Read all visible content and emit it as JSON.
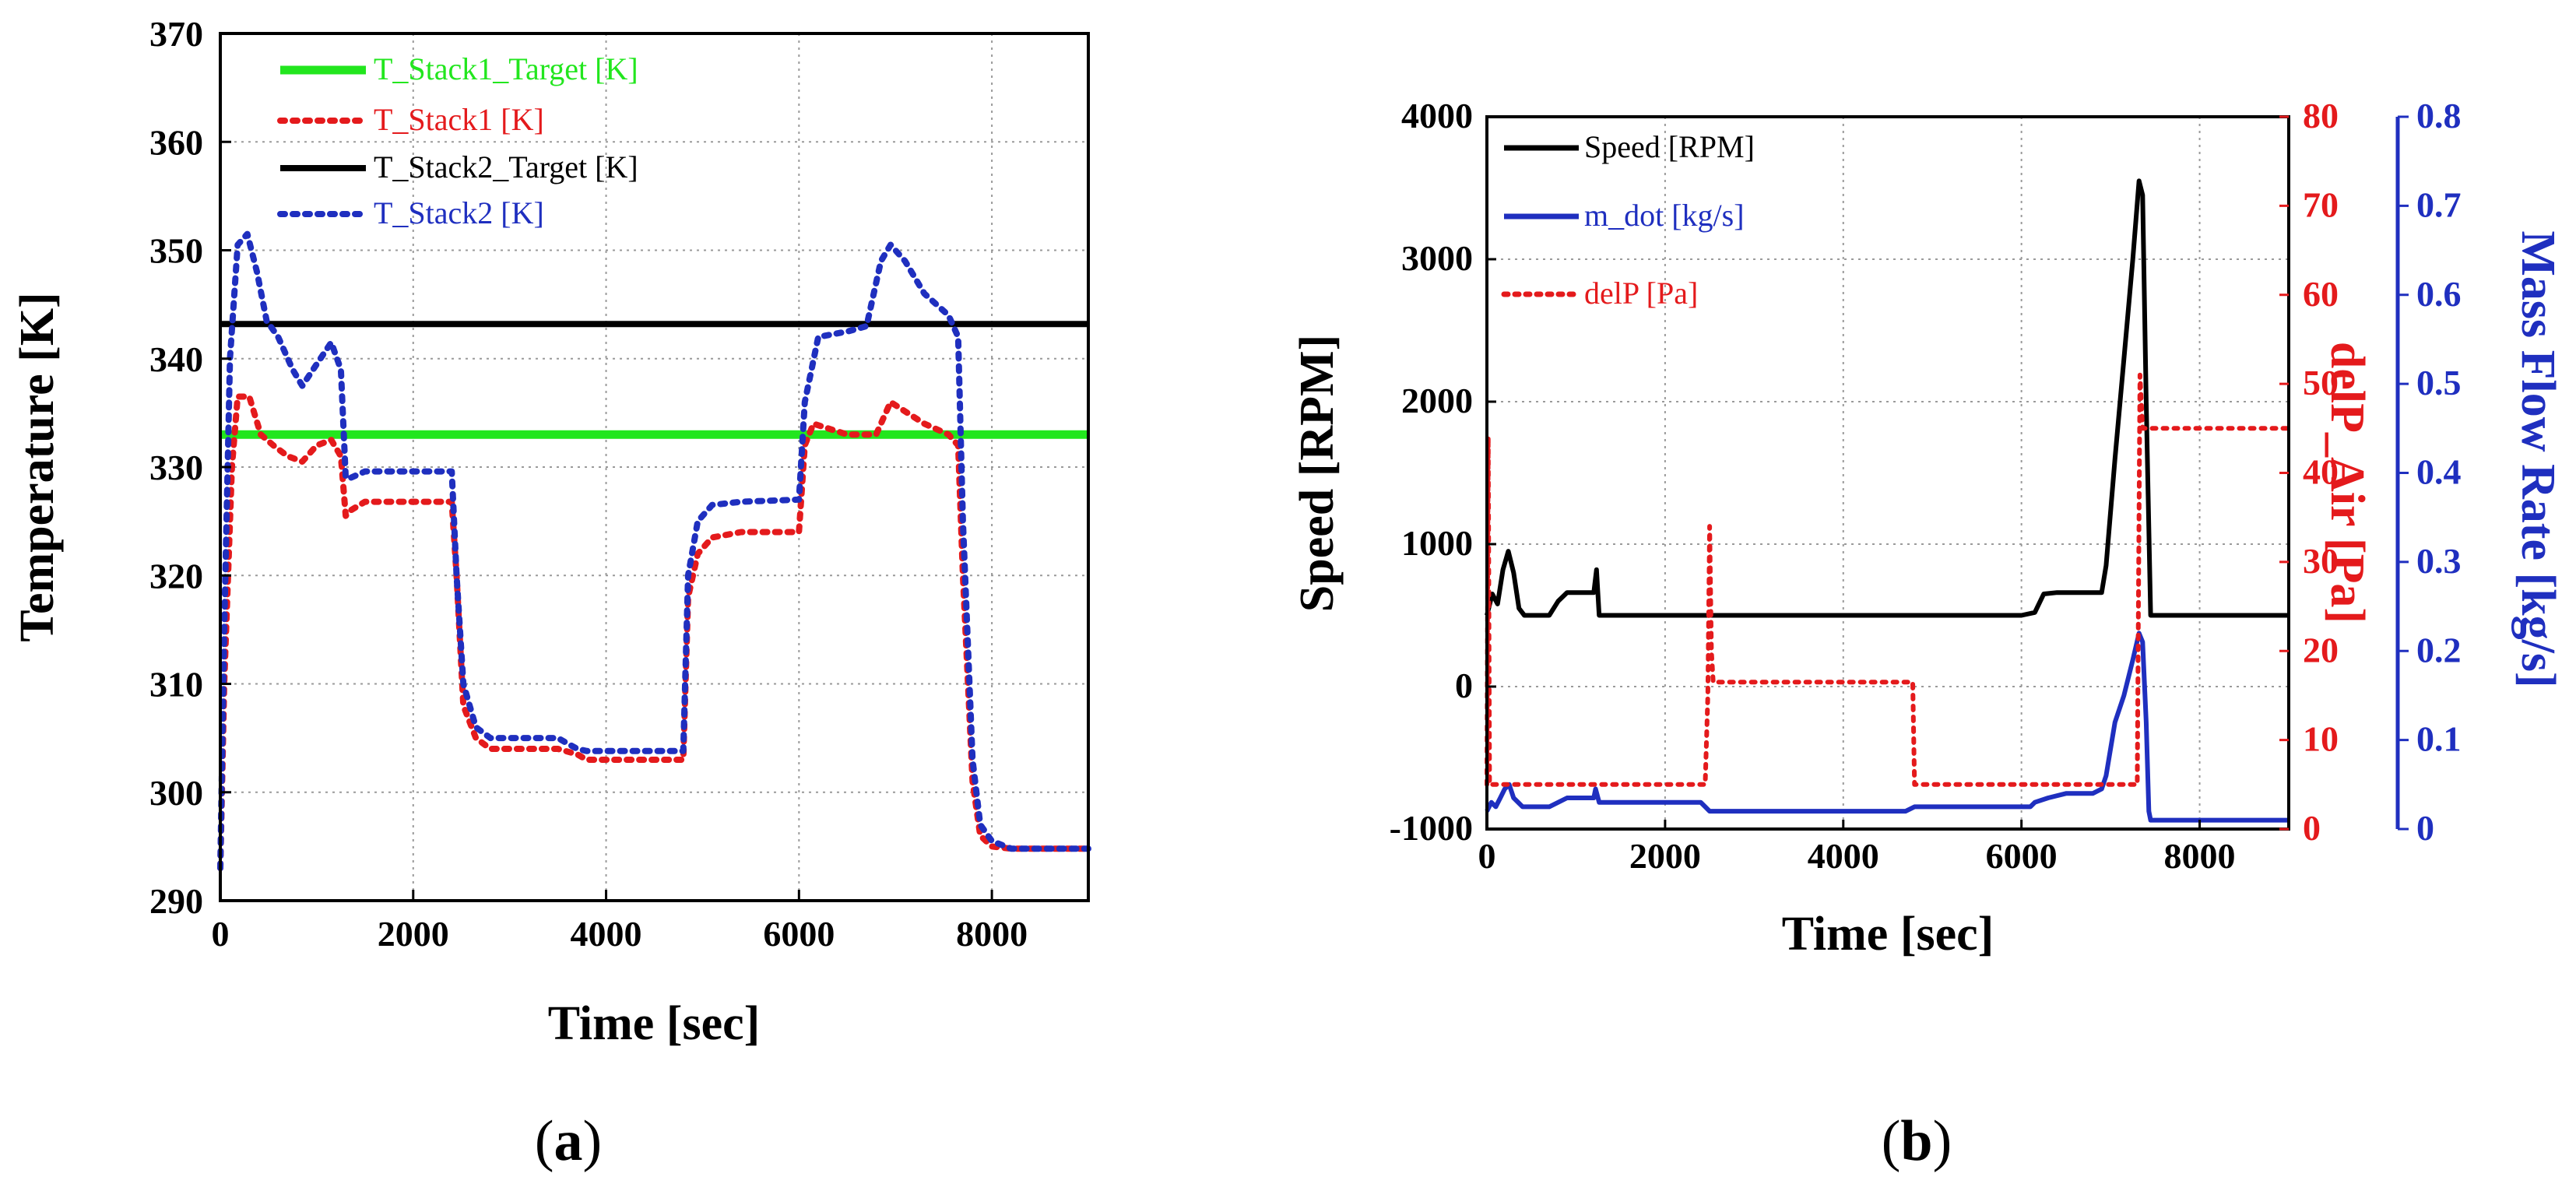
{
  "chart_data": [
    {
      "panel": "(a)",
      "panel_letter": "a",
      "type": "line",
      "xlabel": "Time [sec]",
      "ylabel": "Temperature [K]",
      "xlim": [
        0,
        9000
      ],
      "ylim": [
        290,
        370
      ],
      "xticks": [
        0,
        2000,
        4000,
        6000,
        8000
      ],
      "yticks": [
        290,
        300,
        310,
        320,
        330,
        340,
        350,
        360,
        370
      ],
      "grid": true,
      "legend_position": "top-left",
      "series": [
        {
          "name": "T_Stack1_Target [K]",
          "color": "#22e61e",
          "style": "solid",
          "x": [
            0,
            9000
          ],
          "y": [
            333,
            333
          ]
        },
        {
          "name": "T_Stack1 [K]",
          "color": "#e41a1c",
          "style": "dotted",
          "x": [
            0,
            40,
            120,
            180,
            300,
            420,
            550,
            700,
            850,
            1000,
            1150,
            1250,
            1300,
            1350,
            1500,
            2000,
            2400,
            2450,
            2520,
            2650,
            2800,
            3000,
            3500,
            3700,
            3800,
            4200,
            4800,
            4850,
            4950,
            5100,
            5400,
            6000,
            6060,
            6150,
            6500,
            6800,
            6950,
            7300,
            7550,
            7650,
            7700,
            7800,
            7880,
            8000,
            8200,
            8500,
            9000
          ],
          "y": [
            293,
            310,
            330,
            336.5,
            336.5,
            333,
            332,
            331,
            330.5,
            332,
            332.5,
            331,
            325.5,
            326,
            326.8,
            326.8,
            326.8,
            320,
            308,
            305,
            304,
            304,
            304,
            303.5,
            303,
            303,
            303,
            318,
            322,
            323.5,
            324,
            324,
            332,
            334,
            333,
            333,
            336,
            334,
            333,
            332,
            320,
            301,
            296,
            295,
            294.8,
            294.8,
            294.8
          ]
        },
        {
          "name": "T_Stack2_Target [K]",
          "color": "#000000",
          "style": "solid",
          "x": [
            0,
            9000
          ],
          "y": [
            343.2,
            343.2
          ]
        },
        {
          "name": "T_Stack2 [K]",
          "color": "#1f2fbf",
          "style": "dotted",
          "x": [
            0,
            40,
            100,
            180,
            280,
            380,
            480,
            600,
            750,
            850,
            1000,
            1150,
            1250,
            1300,
            1350,
            1500,
            2000,
            2400,
            2450,
            2520,
            2650,
            2800,
            3000,
            3500,
            3700,
            3800,
            4200,
            4800,
            4850,
            4950,
            5100,
            5400,
            6000,
            6060,
            6200,
            6500,
            6700,
            6850,
            6950,
            7100,
            7300,
            7550,
            7650,
            7700,
            7800,
            7880,
            8000,
            8200,
            8500,
            9000
          ],
          "y": [
            293,
            315,
            340,
            350.5,
            351.5,
            348,
            343.5,
            342,
            339,
            337.5,
            339.5,
            341.5,
            339,
            329,
            329,
            329.6,
            329.6,
            329.6,
            320,
            310,
            306,
            305,
            305,
            305,
            304,
            303.8,
            303.8,
            303.8,
            320,
            325,
            326.5,
            326.8,
            327,
            336,
            342,
            342.5,
            343,
            349,
            350.5,
            349,
            346,
            344,
            342,
            325,
            303,
            297,
            295.5,
            294.8,
            294.8,
            294.8
          ]
        }
      ]
    },
    {
      "panel": "(b)",
      "panel_letter": "b",
      "type": "line",
      "xlabel": "Time [sec]",
      "ylabel_left": "Speed [RPM]",
      "ylabel_right1": "delP_Air [Pa]",
      "ylabel_right2": "Mass Flow Rate [kg/s]",
      "xlim": [
        0,
        9000
      ],
      "xticks": [
        0,
        2000,
        4000,
        6000,
        8000
      ],
      "ylim_left": [
        -1000,
        4000
      ],
      "yticks_left": [
        -1000,
        0,
        1000,
        2000,
        3000,
        4000
      ],
      "ylim_right1": [
        0,
        80
      ],
      "yticks_right1": [
        0,
        10,
        20,
        30,
        40,
        50,
        60,
        70,
        80
      ],
      "ylim_right2": [
        0,
        0.8
      ],
      "yticks_right2": [
        0,
        0.1,
        0.2,
        0.3,
        0.4,
        0.5,
        0.6,
        0.7,
        0.8
      ],
      "grid": true,
      "legend_position": "top-left",
      "axis_colors": {
        "left": "#000000",
        "right1": "#e41a1c",
        "right2": "#1f2fbf"
      },
      "series": [
        {
          "name": "Speed [RPM]",
          "axis": "left",
          "color": "#000000",
          "style": "solid",
          "x": [
            0,
            60,
            120,
            180,
            240,
            300,
            360,
            420,
            500,
            700,
            800,
            900,
            1000,
            1150,
            1200,
            1230,
            1260,
            1300,
            2000,
            6000,
            6150,
            6250,
            6400,
            6900,
            6950,
            7050,
            7150,
            7250,
            7320,
            7360,
            7400,
            7450,
            9000
          ],
          "y": [
            500,
            650,
            580,
            820,
            950,
            800,
            550,
            500,
            500,
            500,
            600,
            660,
            660,
            660,
            660,
            820,
            500,
            500,
            500,
            500,
            520,
            650,
            660,
            660,
            850,
            1600,
            2300,
            3000,
            3550,
            3450,
            2000,
            500,
            500
          ]
        },
        {
          "name": "m_dot [kg/s]",
          "axis": "right2",
          "color": "#1f2fbf",
          "style": "solid",
          "x": [
            0,
            50,
            100,
            150,
            200,
            250,
            300,
            350,
            400,
            500,
            700,
            800,
            900,
            1100,
            1150,
            1200,
            1220,
            1260,
            1300,
            2400,
            2450,
            2500,
            2550,
            3000,
            4700,
            4800,
            6100,
            6150,
            6300,
            6500,
            6800,
            6900,
            6950,
            7050,
            7150,
            7250,
            7320,
            7360,
            7400,
            7430,
            7450,
            9000
          ],
          "y": [
            0.02,
            0.03,
            0.025,
            0.035,
            0.045,
            0.05,
            0.035,
            0.03,
            0.025,
            0.025,
            0.025,
            0.03,
            0.035,
            0.035,
            0.035,
            0.035,
            0.045,
            0.03,
            0.03,
            0.03,
            0.025,
            0.02,
            0.02,
            0.02,
            0.02,
            0.025,
            0.025,
            0.03,
            0.035,
            0.04,
            0.04,
            0.045,
            0.06,
            0.12,
            0.15,
            0.19,
            0.22,
            0.21,
            0.12,
            0.02,
            0.01,
            0.01
          ]
        },
        {
          "name": "delP [Pa]",
          "axis": "right1",
          "color": "#e41a1c",
          "style": "dotted",
          "x": [
            0,
            15,
            30,
            60,
            2450,
            2480,
            2500,
            2520,
            2540,
            2600,
            3000,
            4700,
            4780,
            4800,
            4820,
            7300,
            7330,
            7360,
            7400,
            7500,
            9000
          ],
          "y": [
            5,
            44,
            5,
            5,
            5,
            15,
            34,
            20,
            16.5,
            16.5,
            16.5,
            16.5,
            16.5,
            5,
            5,
            5,
            51,
            45,
            45,
            45,
            45
          ]
        }
      ]
    }
  ]
}
